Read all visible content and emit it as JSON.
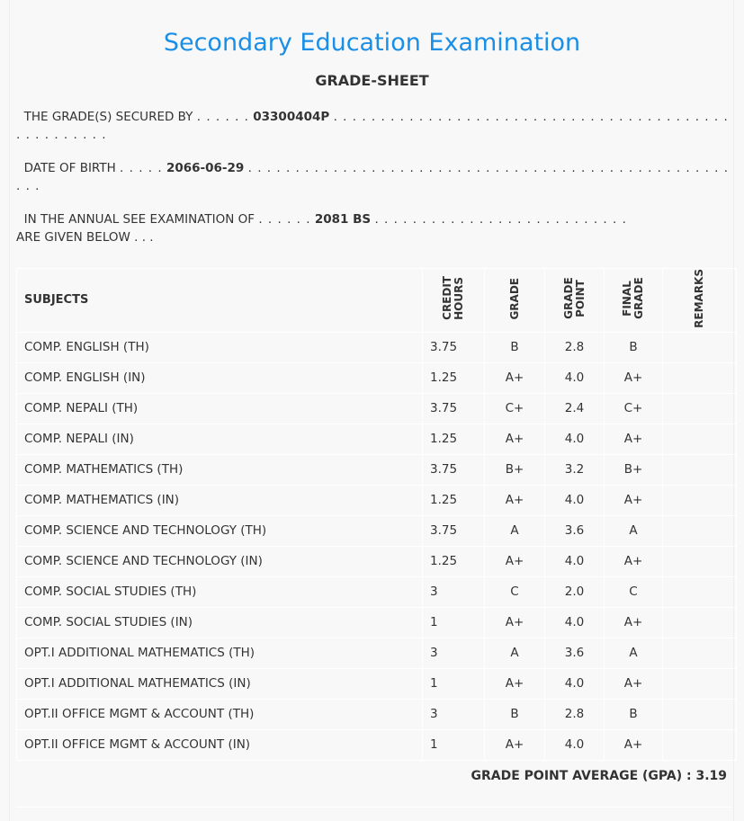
{
  "title": "Secondary Education Examination",
  "subtitle": "GRADE-SHEET",
  "secured_by": {
    "label": "THE GRADE(S) SECURED BY",
    "value": "03300404P"
  },
  "dob": {
    "label": "DATE OF BIRTH",
    "value": "2066-06-29"
  },
  "exam": {
    "label": "IN THE ANNUAL SEE EXAMINATION OF",
    "value": "2081 BS",
    "suffix": "ARE GIVEN BELOW . . ."
  },
  "headers": {
    "subjects": "SUBJECTS",
    "credit": "CREDIT HOURS",
    "grade": "GRADE",
    "grade_point": "GRADE POINT",
    "final": "FINAL GRADE",
    "remarks": "REMARKS"
  },
  "rows": [
    [
      "COMP. ENGLISH (TH)",
      "3.75",
      "B",
      "2.8",
      "B"
    ],
    [
      "COMP. ENGLISH (IN)",
      "1.25",
      "A+",
      "4.0",
      "A+"
    ],
    [
      "COMP. NEPALI (TH)",
      "3.75",
      "C+",
      "2.4",
      "C+"
    ],
    [
      "COMP. NEPALI (IN)",
      "1.25",
      "A+",
      "4.0",
      "A+"
    ],
    [
      "COMP. MATHEMATICS (TH)",
      "3.75",
      "B+",
      "3.2",
      "B+"
    ],
    [
      "COMP. MATHEMATICS (IN)",
      "1.25",
      "A+",
      "4.0",
      "A+"
    ],
    [
      "COMP. SCIENCE AND TECHNOLOGY (TH)",
      "3.75",
      "A",
      "3.6",
      "A"
    ],
    [
      "COMP. SCIENCE AND TECHNOLOGY (IN)",
      "1.25",
      "A+",
      "4.0",
      "A+"
    ],
    [
      "COMP. SOCIAL STUDIES (TH)",
      "3",
      "C",
      "2.0",
      "C"
    ],
    [
      "COMP. SOCIAL STUDIES (IN)",
      "1",
      "A+",
      "4.0",
      "A+"
    ],
    [
      "OPT.I ADDITIONAL MATHEMATICS (TH)",
      "3",
      "A",
      "3.6",
      "A"
    ],
    [
      "OPT.I ADDITIONAL MATHEMATICS (IN)",
      "1",
      "A+",
      "4.0",
      "A+"
    ],
    [
      "OPT.II OFFICE MGMT & ACCOUNT (TH)",
      "3",
      "B",
      "2.8",
      "B"
    ],
    [
      "OPT.II OFFICE MGMT & ACCOUNT (IN)",
      "1",
      "A+",
      "4.0",
      "A+"
    ]
  ],
  "gpa": "GRADE POINT AVERAGE (GPA) : 3.19"
}
